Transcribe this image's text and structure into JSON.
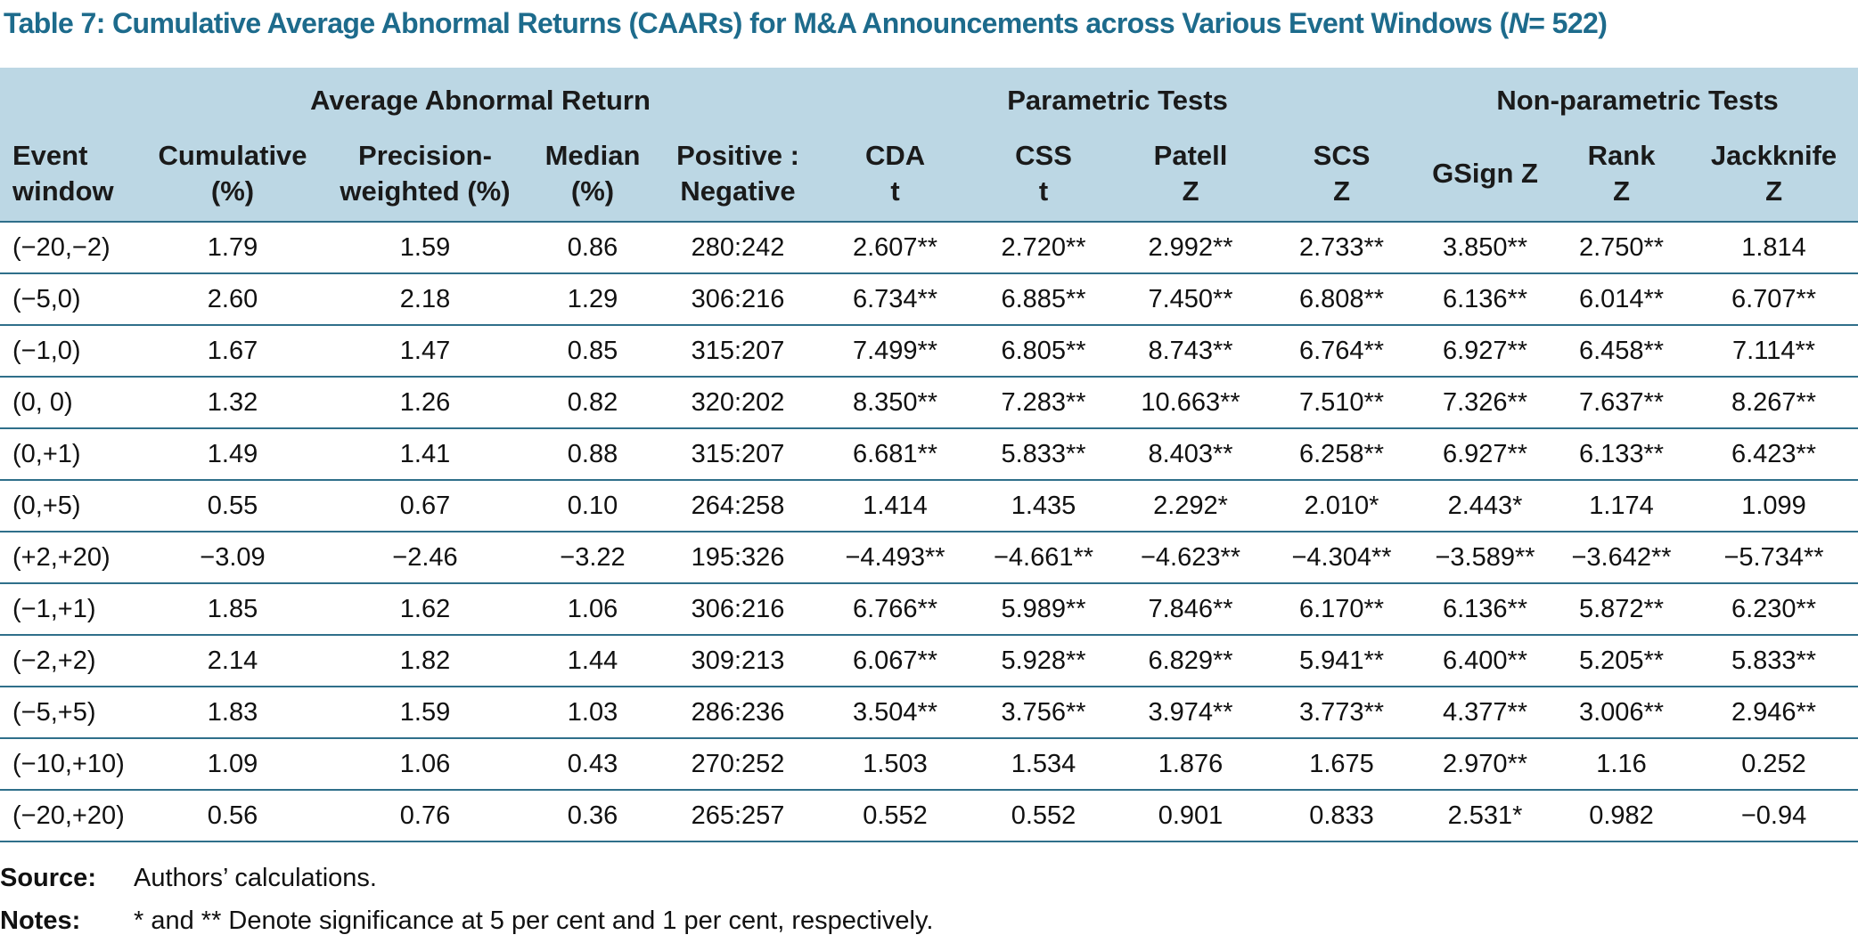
{
  "title": {
    "before": "Table 7: Cumulative Average Abnormal Returns (CAARs) for M&A Announcements across Various Event Windows (",
    "italic": "N",
    "after": "= 522)"
  },
  "table": {
    "groups": [
      {
        "label": "Average Abnormal Return",
        "span": 4
      },
      {
        "label": "Parametric Tests",
        "span": 4
      },
      {
        "label": "Non-parametric Tests",
        "span": 3
      }
    ],
    "columns": [
      [
        "Event",
        "window"
      ],
      [
        "Cumulative",
        "(%)"
      ],
      [
        "Precision-",
        "weighted (%)"
      ],
      [
        "Median",
        "(%)"
      ],
      [
        "Positive :",
        "Negative"
      ],
      [
        "CDA",
        "t"
      ],
      [
        "CSS",
        "t"
      ],
      [
        "Patell",
        "Z"
      ],
      [
        "SCS",
        "Z"
      ],
      [
        "GSign Z"
      ],
      [
        "Rank",
        "Z"
      ],
      [
        "Jackknife",
        "Z"
      ]
    ],
    "rows": [
      [
        "(−20,−2)",
        "1.79",
        "1.59",
        "0.86",
        "280:242",
        "2.607**",
        "2.720**",
        "2.992**",
        "2.733**",
        "3.850**",
        "2.750**",
        "1.814"
      ],
      [
        "(−5,0)",
        "2.60",
        "2.18",
        "1.29",
        "306:216",
        "6.734**",
        "6.885**",
        "7.450**",
        "6.808**",
        "6.136**",
        "6.014**",
        "6.707**"
      ],
      [
        "(−1,0)",
        "1.67",
        "1.47",
        "0.85",
        "315:207",
        "7.499**",
        "6.805**",
        "8.743**",
        "6.764**",
        "6.927**",
        "6.458**",
        "7.114**"
      ],
      [
        "(0, 0)",
        "1.32",
        "1.26",
        "0.82",
        "320:202",
        "8.350**",
        "7.283**",
        "10.663**",
        "7.510**",
        "7.326**",
        "7.637**",
        "8.267**"
      ],
      [
        "(0,+1)",
        "1.49",
        "1.41",
        "0.88",
        "315:207",
        "6.681**",
        "5.833**",
        "8.403**",
        "6.258**",
        "6.927**",
        "6.133**",
        "6.423**"
      ],
      [
        "(0,+5)",
        "0.55",
        "0.67",
        "0.10",
        "264:258",
        "1.414",
        "1.435",
        "2.292*",
        "2.010*",
        "2.443*",
        "1.174",
        "1.099"
      ],
      [
        "(+2,+20)",
        "−3.09",
        "−2.46",
        "−3.22",
        "195:326",
        "−4.493**",
        "−4.661**",
        "−4.623**",
        "−4.304**",
        "−3.589**",
        "−3.642**",
        "−5.734**"
      ],
      [
        "(−1,+1)",
        "1.85",
        "1.62",
        "1.06",
        "306:216",
        "6.766**",
        "5.989**",
        "7.846**",
        "6.170**",
        "6.136**",
        "5.872**",
        "6.230**"
      ],
      [
        "(−2,+2)",
        "2.14",
        "1.82",
        "1.44",
        "309:213",
        "6.067**",
        "5.928**",
        "6.829**",
        "5.941**",
        "6.400**",
        "5.205**",
        "5.833**"
      ],
      [
        "(−5,+5)",
        "1.83",
        "1.59",
        "1.03",
        "286:236",
        "3.504**",
        "3.756**",
        "3.974**",
        "3.773**",
        "4.377**",
        "3.006**",
        "2.946**"
      ],
      [
        "(−10,+10)",
        "1.09",
        "1.06",
        "0.43",
        "270:252",
        "1.503",
        "1.534",
        "1.876",
        "1.675",
        "2.970**",
        "1.16",
        "0.252"
      ],
      [
        "(−20,+20)",
        "0.56",
        "0.76",
        "0.36",
        "265:257",
        "0.552",
        "0.552",
        "0.901",
        "0.833",
        "2.531*",
        "0.982",
        "−0.94"
      ]
    ]
  },
  "footnotes": [
    {
      "label": "Source:",
      "text": "Authors’ calculations."
    },
    {
      "label": "Notes:",
      "text": "* and ** Denote significance at 5 per cent and 1 per cent, respectively."
    }
  ]
}
